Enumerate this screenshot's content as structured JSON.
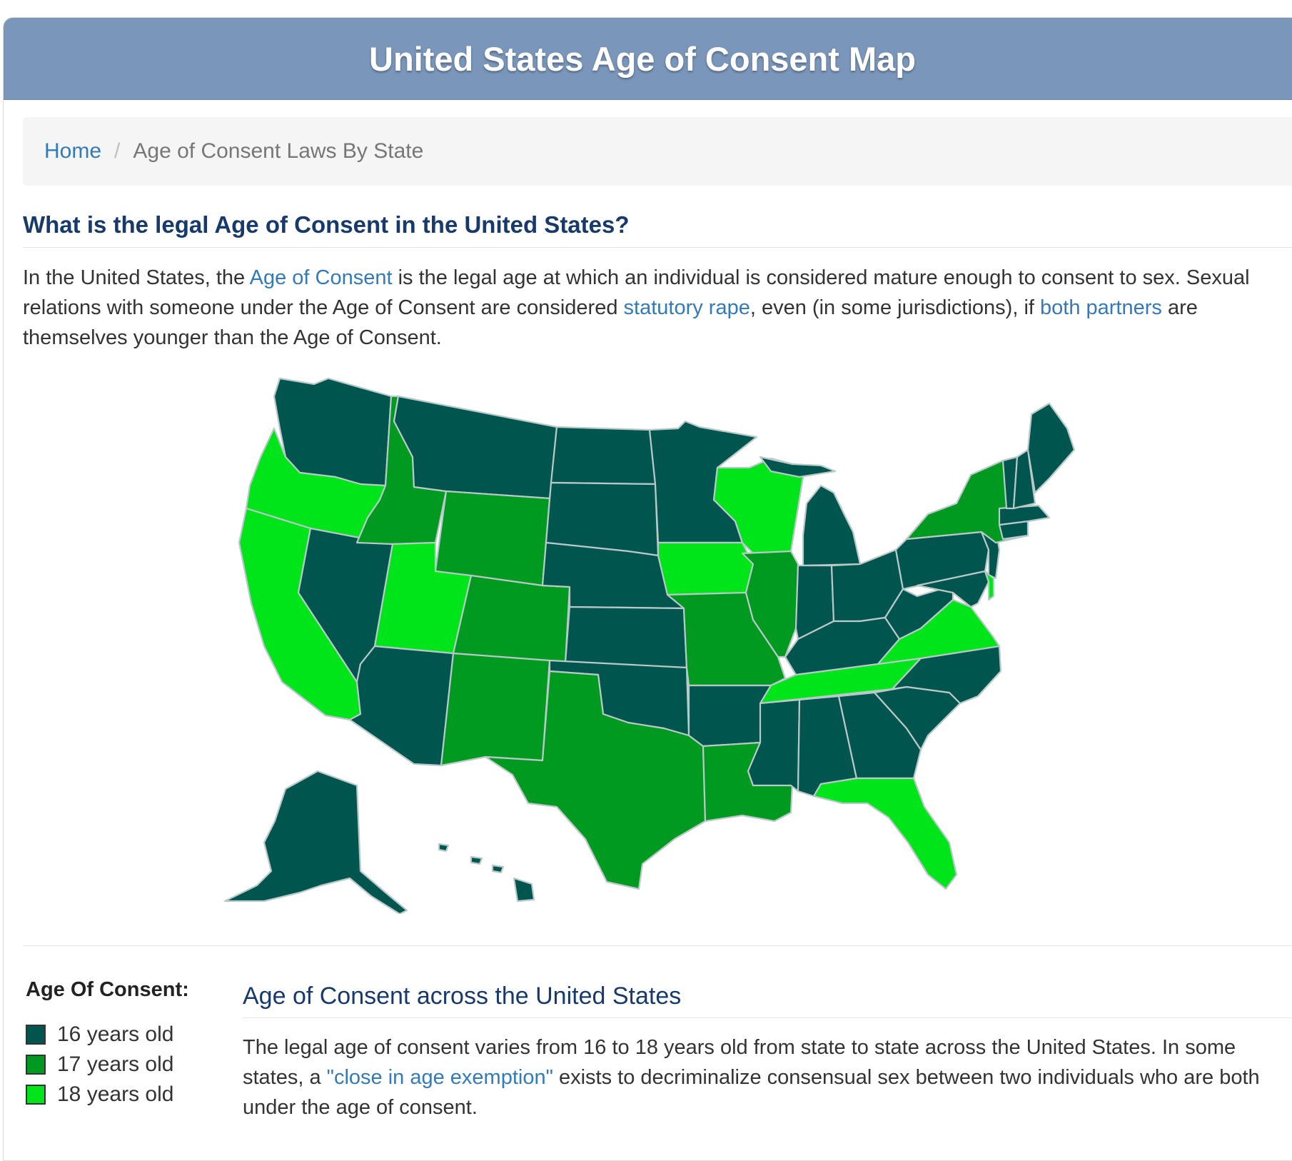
{
  "header": {
    "title": "United States Age of Consent Map"
  },
  "breadcrumb": {
    "home": "Home",
    "separator": "/",
    "current": "Age of Consent Laws By State"
  },
  "intro": {
    "heading": "What is the legal Age of Consent in the United States?",
    "text_1": "In the United States, the ",
    "link_1": "Age of Consent",
    "text_2": " is the legal age at which an individual is considered mature enough to consent to sex. Sexual relations with someone under the Age of Consent are considered ",
    "link_2": "statutory rape",
    "text_3": ", even (in some jurisdictions), if ",
    "link_3": "both partners",
    "text_4": " are themselves younger than the Age of Consent."
  },
  "map": {
    "colors": {
      "age_16": "#00554f",
      "age_17": "#009a20",
      "age_18": "#00e51a",
      "border": "#b9c8c8"
    },
    "states": {
      "WA": 16,
      "OR": 18,
      "CA": 18,
      "NV": 16,
      "ID": 17,
      "MT": 16,
      "WY": 17,
      "UT": 18,
      "AZ": 16,
      "CO": 17,
      "NM": 17,
      "ND": 16,
      "SD": 16,
      "NE": 16,
      "KS": 16,
      "OK": 16,
      "TX": 17,
      "MN": 16,
      "IA": 18,
      "MO": 17,
      "AR": 16,
      "LA": 17,
      "WI": 18,
      "IL": 17,
      "MI": 16,
      "IN": 16,
      "OH": 16,
      "KY": 16,
      "TN": 18,
      "MS": 16,
      "AL": 16,
      "GA": 16,
      "FL": 18,
      "SC": 16,
      "NC": 16,
      "VA": 18,
      "WV": 16,
      "PA": 16,
      "NY": 17,
      "VT": 16,
      "NH": 16,
      "ME": 16,
      "MA": 16,
      "CT": 16,
      "NJ": 16,
      "DE": 18,
      "MD": 16,
      "AK": 16,
      "HI": 16
    }
  },
  "legend": {
    "title": "Age Of Consent:",
    "items": [
      {
        "label": "16 years old",
        "color": "#00554f"
      },
      {
        "label": "17 years old",
        "color": "#009a20"
      },
      {
        "label": "18 years old",
        "color": "#00e51a"
      }
    ]
  },
  "section2": {
    "heading": "Age of Consent across the United States",
    "text_1": "The legal age of consent varies from 16 to 18 years old from state to state across the United States. In some states, a ",
    "link_1": "\"close in age exemption\"",
    "text_2": " exists to decriminalize consensual sex between two individuals who are both under the age of consent."
  }
}
